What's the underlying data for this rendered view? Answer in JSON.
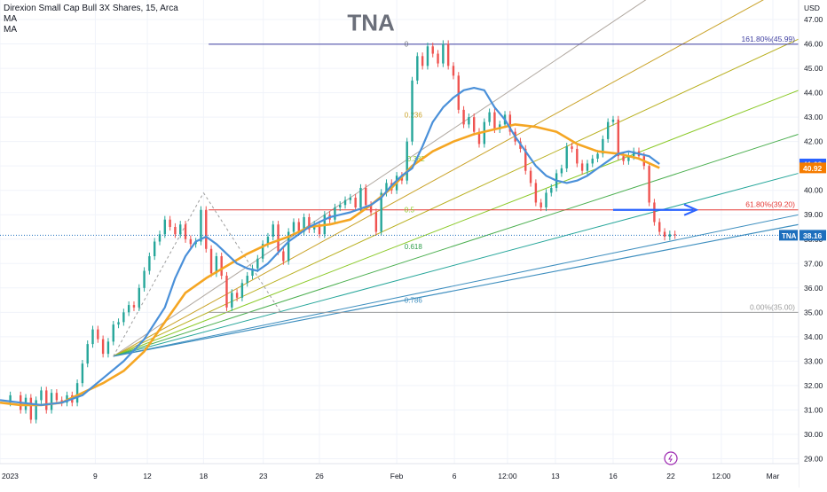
{
  "legend": {
    "symbol_line": "Direxion Small Cap Bull 3X Shares, 15, Arca",
    "ma1": "MA",
    "ma2": "MA"
  },
  "watermark": "TNA",
  "currency": "USD",
  "colors": {
    "up": "#26a69a",
    "down": "#ef5350",
    "ma_fast": "#4a90d9",
    "ma_slow": "#f5a623",
    "fib_top_line": "#3f3fa0",
    "fib_618_line": "#e53935",
    "fib_zero_line": "#9e9e9e",
    "arrow": "#2962ff",
    "price_tag": "#1e6fbd",
    "ma_tag_blue": "#2962ff",
    "ma_tag_orange": "#f57c00"
  },
  "chart_data": {
    "type": "line",
    "title": "TNA",
    "y_axis": {
      "ylim": [
        28.8,
        47.8
      ],
      "ticks": [
        29.0,
        30.0,
        31.0,
        32.0,
        33.0,
        34.0,
        35.0,
        36.0,
        37.0,
        38.0,
        39.0,
        40.0,
        41.0,
        42.0,
        43.0,
        44.0,
        45.0,
        46.0,
        47.0
      ],
      "tick_labels": [
        "29.00",
        "30.00",
        "31.00",
        "32.00",
        "33.00",
        "34.00",
        "35.00",
        "36.00",
        "37.00",
        "38.00",
        "39.00",
        "40.00",
        "41.00",
        "42.00",
        "43.00",
        "44.00",
        "45.00",
        "46.00",
        "47.00"
      ]
    },
    "x_axis": {
      "labels": [
        "2023",
        "9",
        "12",
        "18",
        "23",
        "26",
        "Feb",
        "6",
        "12:00",
        "13",
        "16",
        "22",
        "12:00",
        "Mar"
      ],
      "label_positions": [
        0,
        18.5,
        28.6,
        39.5,
        51.1,
        62.0,
        77.0,
        88.2,
        98.5,
        107.8,
        119.0,
        130.2,
        140.0,
        150.0
      ]
    },
    "x_range": [
      0,
      155
    ],
    "series": [
      {
        "kind": "price",
        "x": [
          0,
          2,
          4,
          5,
          6,
          7,
          8,
          9,
          10,
          11,
          12,
          13,
          14,
          15,
          16,
          17,
          18,
          19,
          20,
          21,
          22,
          23,
          24,
          25,
          26,
          27,
          28,
          29,
          30,
          31,
          32,
          33,
          34,
          35,
          36,
          37,
          38,
          39,
          40,
          41,
          42,
          43,
          44,
          45,
          46,
          47,
          48,
          49,
          50,
          51,
          52,
          53,
          54,
          55,
          56,
          57,
          58,
          59,
          60,
          61,
          62,
          63,
          64,
          65,
          66,
          67,
          68,
          69,
          70,
          71,
          72,
          73,
          74,
          75,
          76,
          77,
          78,
          79,
          80,
          81,
          82,
          83,
          84,
          85,
          86,
          87,
          88,
          89,
          90,
          91,
          92,
          93,
          94,
          95,
          96,
          97,
          98,
          99,
          100,
          101,
          102,
          103,
          104,
          105,
          106,
          107,
          108,
          109,
          110,
          111,
          112,
          113,
          114,
          115,
          116,
          117,
          118,
          119,
          120,
          121,
          122,
          123,
          124,
          125,
          126,
          127,
          128,
          129,
          130,
          131
        ],
        "values": [
          31.3,
          31.6,
          31.0,
          31.5,
          30.6,
          31.4,
          31.8,
          31.0,
          31.7,
          31.4,
          31.3,
          31.6,
          31.3,
          32.1,
          32.9,
          33.7,
          34.3,
          33.9,
          33.3,
          33.8,
          34.5,
          34.6,
          35.0,
          35.3,
          35.2,
          36.0,
          36.7,
          37.3,
          37.9,
          38.2,
          38.8,
          38.5,
          38.2,
          38.6,
          38.0,
          37.8,
          37.9,
          39.2,
          37.6,
          36.6,
          37.3,
          36.5,
          35.2,
          35.8,
          35.6,
          36.2,
          36.5,
          36.8,
          37.2,
          37.8,
          38.1,
          38.6,
          37.5,
          37.1,
          38.3,
          38.7,
          38.3,
          38.9,
          38.4,
          38.6,
          38.2,
          39.0,
          38.8,
          39.3,
          39.4,
          39.6,
          39.7,
          39.3,
          40.1,
          39.4,
          39.1,
          38.3,
          39.9,
          40.3,
          40.0,
          40.6,
          40.4,
          42.0,
          44.5,
          45.5,
          45.1,
          45.9,
          45.6,
          45.2,
          46.0,
          45.1,
          44.7,
          43.3,
          42.7,
          43.0,
          42.4,
          41.9,
          42.8,
          43.2,
          42.5,
          42.7,
          43.1,
          42.4,
          42.0,
          41.7,
          40.8,
          40.3,
          39.5,
          39.3,
          39.9,
          40.1,
          40.7,
          40.9,
          41.8,
          41.7,
          41.1,
          40.8,
          41.1,
          41.3,
          41.5,
          42.1,
          42.8,
          42.9,
          41.4,
          41.2,
          41.4,
          41.6,
          41.4,
          41.0,
          39.5,
          38.7,
          38.3,
          38.1,
          38.2,
          38.16
        ],
        "last_value": "38.16",
        "last_label": "TNA"
      },
      {
        "kind": "ma_fast",
        "x": [
          0,
          4,
          8,
          12,
          16,
          20,
          24,
          28,
          32,
          34,
          36,
          38,
          40,
          42,
          44,
          46,
          48,
          50,
          52,
          56,
          60,
          64,
          68,
          72,
          74,
          76,
          78,
          80,
          82,
          84,
          86,
          88,
          90,
          92,
          94,
          96,
          98,
          100,
          102,
          104,
          106,
          108,
          110,
          112,
          114,
          116,
          118,
          120,
          122,
          124,
          126,
          128
        ],
        "values": [
          31.4,
          31.3,
          31.2,
          31.3,
          31.6,
          32.3,
          33.0,
          33.9,
          35.2,
          36.4,
          37.3,
          37.9,
          38.1,
          37.8,
          37.4,
          37.0,
          36.8,
          36.7,
          37.0,
          37.9,
          38.5,
          38.9,
          39.1,
          39.4,
          39.7,
          40.2,
          40.6,
          40.9,
          41.8,
          42.8,
          43.4,
          43.8,
          44.1,
          44.2,
          44.1,
          43.4,
          42.9,
          42.2,
          41.6,
          41.0,
          40.6,
          40.4,
          40.3,
          40.4,
          40.6,
          40.9,
          41.2,
          41.5,
          41.6,
          41.5,
          41.4,
          41.08
        ],
        "last_value": "41.08"
      },
      {
        "kind": "ma_slow",
        "x": [
          0,
          4,
          8,
          12,
          16,
          20,
          24,
          28,
          32,
          36,
          40,
          44,
          48,
          52,
          56,
          60,
          64,
          68,
          72,
          76,
          80,
          84,
          88,
          92,
          96,
          100,
          104,
          108,
          112,
          116,
          120,
          124,
          128
        ],
        "values": [
          31.3,
          31.2,
          31.2,
          31.3,
          31.7,
          32.1,
          32.6,
          33.4,
          34.6,
          35.8,
          36.4,
          36.9,
          37.4,
          37.8,
          38.1,
          38.5,
          38.6,
          38.8,
          39.4,
          40.1,
          41.0,
          41.6,
          42.0,
          42.3,
          42.5,
          42.7,
          42.6,
          42.4,
          41.9,
          41.6,
          41.5,
          41.3,
          40.92
        ],
        "last_value": "40.92"
      }
    ],
    "fib_retracement": {
      "levels": [
        {
          "label": "0",
          "value": 46.0
        },
        {
          "label": "0.236",
          "value": 43.1
        },
        {
          "label": "0.382",
          "value": 41.3
        },
        {
          "label": "0.5",
          "value": 39.2
        },
        {
          "label": "0.618",
          "value": 37.7
        },
        {
          "label": "0.786",
          "value": 35.5
        }
      ],
      "price_lines": [
        {
          "label": "161.80%(45.99)",
          "value": 45.99
        },
        {
          "label": "61.80%(39.20)",
          "value": 39.2
        },
        {
          "label": "0.00%(35.00)",
          "value": 35.0
        }
      ]
    },
    "fan_origin": {
      "x": 22.0,
      "y": 33.2
    },
    "fan_lines_end_y": [
      52.0,
      48.6,
      46.2,
      44.1,
      42.3,
      40.7,
      39.0
    ],
    "dashed_pullback": {
      "x": [
        39.5,
        54.5
      ],
      "y": [
        39.9,
        35.0
      ]
    }
  }
}
